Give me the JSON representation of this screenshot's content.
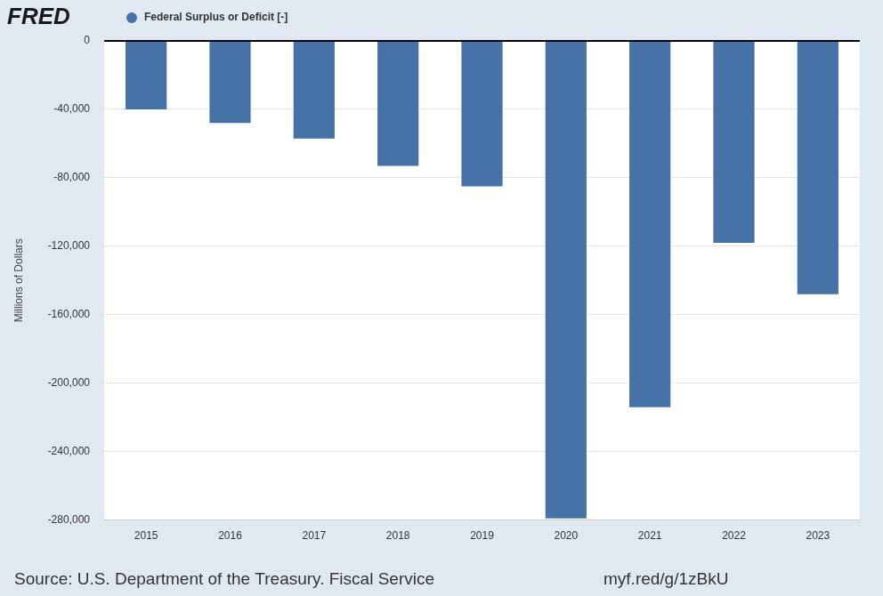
{
  "chart_data": {
    "type": "bar",
    "logo": "FRED",
    "y_label": "Millions of Dollars",
    "source": "Source: U.S. Department of the Treasury. Fiscal Service",
    "link": "myf.red/g/1zBkU",
    "categories": [
      "2015",
      "2016",
      "2017",
      "2018",
      "2019",
      "2020",
      "2021",
      "2022",
      "2023"
    ],
    "series": [
      {
        "name": "Federal Surplus or Deficit [-]",
        "color": "#4572a7",
        "values": [
          -40000,
          -48000,
          -57000,
          -73000,
          -85000,
          -279000,
          -214000,
          -118000,
          -148000
        ]
      }
    ],
    "legend": "top",
    "ylim": [
      -280000,
      0
    ],
    "yticks": [
      {
        "value": -280000,
        "label": "-280,000"
      },
      {
        "value": -240000,
        "label": "-240,000"
      },
      {
        "value": -200000,
        "label": "-200,000"
      },
      {
        "value": -160000,
        "label": "-160,000"
      },
      {
        "value": -120000,
        "label": "-120,000"
      },
      {
        "value": -80000,
        "label": "-80,000"
      },
      {
        "value": -40000,
        "label": "-40,000"
      },
      0
    ],
    "grid": true
  }
}
